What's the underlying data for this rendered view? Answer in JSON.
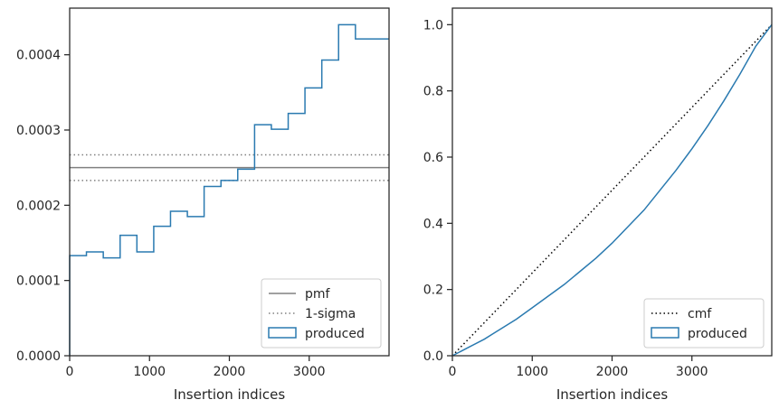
{
  "chart_data": [
    {
      "type": "step",
      "xlabel": "Insertion indices",
      "ylabel": "",
      "xlim": [
        0,
        4000
      ],
      "ylim": [
        0,
        0.000462
      ],
      "xticks": [
        "0",
        "1000",
        "2000",
        "3000"
      ],
      "yticks": [
        "0.0000",
        "0.0001",
        "0.0002",
        "0.0003",
        "0.0004"
      ],
      "xtick_values": [
        0,
        1000,
        2000,
        3000
      ],
      "ytick_values": [
        0,
        0.0001,
        0.0002,
        0.0003,
        0.0004
      ],
      "bin_edges": [
        0,
        210,
        421,
        632,
        842,
        1053,
        1263,
        1474,
        1684,
        1895,
        2105,
        2316,
        2526,
        2737,
        2947,
        3158,
        3368,
        3579,
        3789,
        4000
      ],
      "series": [
        {
          "name": "pmf",
          "style": "solid",
          "color": "#808080",
          "value": 0.00025
        },
        {
          "name": "1-sigma",
          "style": "dotted",
          "color": "#808080",
          "values": [
            0.000267,
            0.000233
          ]
        },
        {
          "name": "produced",
          "style": "step",
          "color": "#2a7ab0",
          "values": [
            0.000133,
            0.000138,
            0.00013,
            0.00016,
            0.000138,
            0.000172,
            0.000192,
            0.000185,
            0.000225,
            0.000233,
            0.000248,
            0.000307,
            0.000301,
            0.000322,
            0.000356,
            0.000393,
            0.00044,
            0.000421,
            0.000421
          ]
        }
      ],
      "legend": {
        "position": "lower-right",
        "entries": [
          "pmf",
          "1-sigma",
          "produced"
        ]
      }
    },
    {
      "type": "line",
      "xlabel": "Insertion indices",
      "ylabel": "",
      "xlim": [
        0,
        4000
      ],
      "ylim": [
        0,
        1.05
      ],
      "xticks": [
        "0",
        "1000",
        "2000",
        "3000"
      ],
      "yticks": [
        "0.0",
        "0.2",
        "0.4",
        "0.6",
        "0.8",
        "1.0"
      ],
      "xtick_values": [
        0,
        1000,
        2000,
        3000
      ],
      "ytick_values": [
        0,
        0.2,
        0.4,
        0.6,
        0.8,
        1.0
      ],
      "series": [
        {
          "name": "cmf",
          "style": "dotted",
          "color": "#000000",
          "x": [
            0,
            4000
          ],
          "y": [
            0,
            1.0
          ]
        },
        {
          "name": "produced",
          "style": "step",
          "color": "#2a7ab0",
          "x": [
            0,
            200,
            400,
            500,
            600,
            800,
            1000,
            1200,
            1400,
            1600,
            1800,
            2000,
            2200,
            2400,
            2600,
            2800,
            3000,
            3200,
            3400,
            3600,
            3800,
            4000
          ],
          "y": [
            0,
            0.025,
            0.05,
            0.065,
            0.08,
            0.11,
            0.145,
            0.18,
            0.215,
            0.255,
            0.295,
            0.34,
            0.39,
            0.44,
            0.5,
            0.56,
            0.625,
            0.695,
            0.77,
            0.85,
            0.935,
            1.0
          ]
        }
      ],
      "legend": {
        "position": "lower-right",
        "entries": [
          "cmf",
          "produced"
        ]
      }
    }
  ]
}
